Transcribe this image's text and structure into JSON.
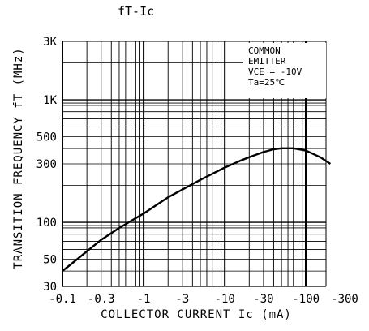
{
  "chart_data": {
    "type": "line",
    "title": "fT-Ic",
    "xlabel": "COLLECTOR CURRENT Ic (mA)",
    "ylabel": "TRANSITION FREQUENCY fT (MHz)",
    "x_scale": "log",
    "y_scale": "log",
    "xlim": [
      -0.1,
      -300
    ],
    "ylim": [
      30,
      3000
    ],
    "x_ticks": [
      "-0.1",
      "-0.3",
      "-1",
      "-3",
      "-10",
      "-30",
      "-100",
      "-300"
    ],
    "y_ticks": [
      "30",
      "50",
      "100",
      "300",
      "500",
      "1K",
      "3K"
    ],
    "annotation": [
      "COMMON",
      "EMITTER",
      "VCE = -10V",
      "Ta=25℃"
    ],
    "grid": true,
    "series": [
      {
        "x": [
          -0.1,
          -0.13,
          -0.2,
          -0.3,
          -0.5,
          -1,
          -2,
          -3,
          -5,
          -10,
          -15,
          -20,
          -30,
          -40,
          -50,
          -70,
          -100,
          -150,
          -200
        ],
        "values": [
          40,
          46,
          58,
          72,
          90,
          118,
          160,
          185,
          222,
          280,
          315,
          340,
          375,
          395,
          402,
          402,
          385,
          340,
          300
        ]
      }
    ]
  }
}
